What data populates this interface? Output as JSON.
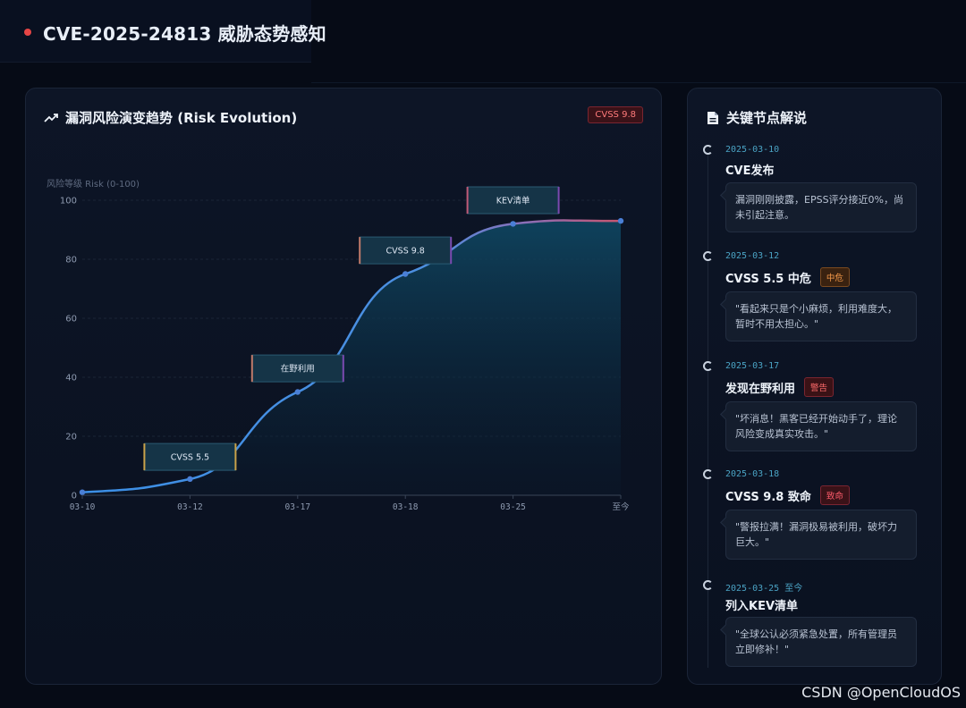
{
  "header": {
    "title": "CVE-2025-24813 威胁态势感知",
    "dot_color": "#e64545"
  },
  "chart_panel": {
    "title": "漏洞风险演变趋势 (Risk Evolution)",
    "badge": "CVSS 9.8",
    "icon": "trending-up-icon"
  },
  "chart_data": {
    "type": "area",
    "ylabel": "风险等级 Risk (0-100)",
    "ylim": [
      0,
      100
    ],
    "y_ticks": [
      0,
      20,
      40,
      60,
      80,
      100
    ],
    "categories": [
      "03-10",
      "03-12",
      "03-17",
      "03-18",
      "03-25",
      "至今"
    ],
    "values": [
      1,
      5.5,
      35,
      75,
      92,
      93
    ],
    "grid": true,
    "annotations": [
      {
        "label": "CVSS 5.5",
        "index": 1,
        "level": 13
      },
      {
        "label": "在野利用",
        "index": 2,
        "level": 43
      },
      {
        "label": "CVSS 9.8",
        "index": 3,
        "level": 83
      },
      {
        "label": "KEV清单",
        "index": 4,
        "level": 100
      }
    ],
    "colors": {
      "line_start": "#3b8fe6",
      "line_end": "#c8556e",
      "point": "#4a7fd6",
      "area": "#0e3a55"
    }
  },
  "side_panel": {
    "title": "关键节点解说",
    "icon": "document-icon",
    "items": [
      {
        "date": "2025-03-10",
        "title": "CVE发布",
        "tag": "",
        "quote": "漏洞刚刚披露，EPSS评分接近0%，尚未引起注意。"
      },
      {
        "date": "2025-03-12",
        "title": "CVSS 5.5 中危",
        "tag": "中危",
        "quote": "\"看起来只是个小麻烦，利用难度大，暂时不用太担心。\""
      },
      {
        "date": "2025-03-17",
        "title": "发现在野利用",
        "tag": "警告",
        "quote": "\"坏消息！黑客已经开始动手了，理论风险变成真实攻击。\""
      },
      {
        "date": "2025-03-18",
        "title": "CVSS 9.8 致命",
        "tag": "致命",
        "quote": "\"警报拉满！漏洞极易被利用，破坏力巨大。\""
      },
      {
        "date": "2025-03-25 至今",
        "title": "列入KEV清单",
        "tag": "",
        "quote": "\"全球公认必须紧急处置，所有管理员立即修补！\""
      }
    ]
  },
  "watermark": "CSDN @OpenCloudOS"
}
